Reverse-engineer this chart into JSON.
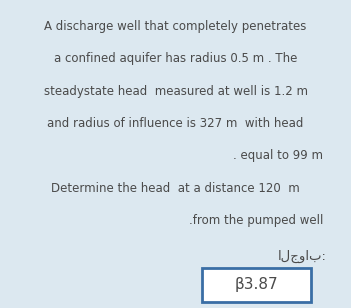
{
  "background_color": "#dce8f0",
  "line1": "A discharge well that completely penetrates",
  "line2": "a confined aquifer has radius 0.5 m . The",
  "line3": "steadystate head  measured at well is 1.2 m",
  "line4": "and radius of influence is 327 m  with head",
  "line5": ". equal to 99 m",
  "line6": "Determine the head  at a distance 120  m",
  "line7": ".from the pumped well",
  "arabic_label": "الجواب:",
  "answer_text": "β3.87",
  "box_edge_color": "#3a6ea5",
  "text_color": "#4a4a4a",
  "answer_fontsize": 11,
  "main_fontsize": 8.5,
  "arabic_fontsize": 9.5,
  "fig_width": 3.51,
  "fig_height": 3.08,
  "dpi": 100
}
